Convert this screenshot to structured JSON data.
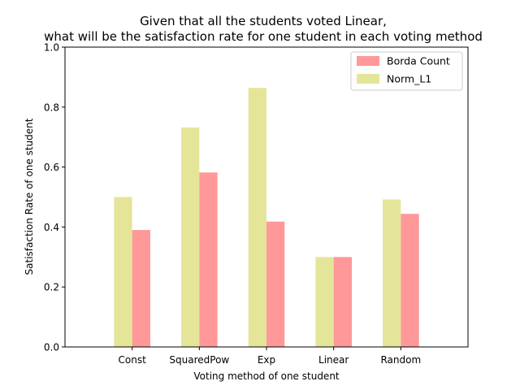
{
  "chart_data": {
    "type": "bar",
    "title_lines": [
      "Given that all the students voted Linear,",
      "what will be the satisfaction rate for one student in each voting method"
    ],
    "xlabel": "Voting method of one student",
    "ylabel": "Satisfaction Rate of one student",
    "categories": [
      "Const",
      "SquaredPow",
      "Exp",
      "Linear",
      "Random"
    ],
    "series": [
      {
        "name": "Norm_L1",
        "color": "#e5e59a",
        "values": [
          0.5,
          0.732,
          0.864,
          0.3,
          0.492
        ]
      },
      {
        "name": "Borda Count",
        "color": "#ff9999",
        "values": [
          0.39,
          0.582,
          0.418,
          0.3,
          0.444
        ]
      }
    ],
    "legend_order": [
      "Borda Count",
      "Norm_L1"
    ],
    "legend_position": "top-right",
    "ylim": [
      0,
      1.0
    ],
    "yticks": [
      "0.0",
      "0.2",
      "0.4",
      "0.6",
      "0.8",
      "1.0"
    ],
    "grid": false
  }
}
